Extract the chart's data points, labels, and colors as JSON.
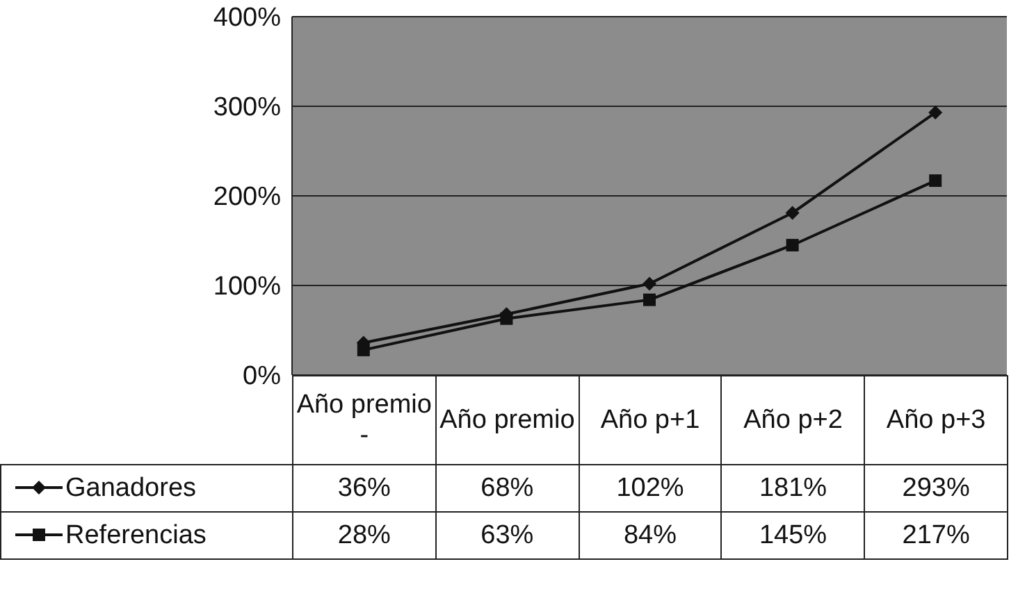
{
  "chart_data": {
    "type": "line",
    "categories": [
      "Año premio -",
      "Año premio",
      "Año p+1",
      "Año p+2",
      "Año p+3"
    ],
    "ylim": [
      0,
      400
    ],
    "yticks": [
      {
        "value": 0,
        "label": "0%"
      },
      {
        "value": 100,
        "label": "100%"
      },
      {
        "value": 200,
        "label": "200%"
      },
      {
        "value": 300,
        "label": "300%"
      },
      {
        "value": 400,
        "label": "400%"
      }
    ],
    "grid": "y",
    "legend": "bottom left",
    "series": [
      {
        "name": "Ganadores",
        "color": "#111111",
        "marker": "diamond",
        "values": [
          36,
          68,
          102,
          181,
          293
        ],
        "value_labels": [
          "36%",
          "68%",
          "102%",
          "181%",
          "293%"
        ]
      },
      {
        "name": "Referencias",
        "color": "#111111",
        "marker": "square",
        "values": [
          28,
          63,
          84,
          145,
          217
        ],
        "value_labels": [
          "28%",
          "63%",
          "84%",
          "145%",
          "217%"
        ]
      }
    ]
  }
}
